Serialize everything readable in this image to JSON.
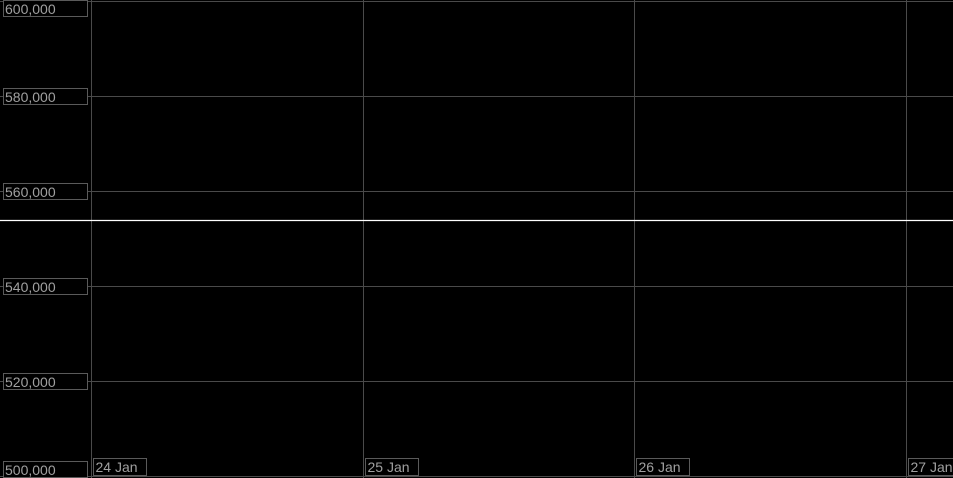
{
  "chart_data": {
    "type": "line",
    "title": "",
    "xlabel": "",
    "ylabel": "",
    "x_ticks": [
      "24 Jan",
      "25 Jan",
      "26 Jan",
      "27 Jan"
    ],
    "y_ticks": [
      "600,000",
      "580,000",
      "560,000",
      "540,000",
      "520,000",
      "500,000"
    ],
    "y_tick_values": [
      600000,
      580000,
      560000,
      540000,
      520000,
      500000
    ],
    "ylim": [
      500000,
      600000
    ],
    "xlim_days_visible": [
      "24 Jan",
      "27 Jan"
    ],
    "grid": true,
    "series": [
      {
        "values": [
          553900,
          553900
        ],
        "x": [
          "start",
          "end"
        ],
        "color": "#ffffff"
      }
    ],
    "colors": {
      "background": "#000000",
      "grid": "#4a4a4a",
      "label_text": "#a0a0a0",
      "label_border": "#5a5a5a",
      "series": "#ffffff"
    }
  }
}
